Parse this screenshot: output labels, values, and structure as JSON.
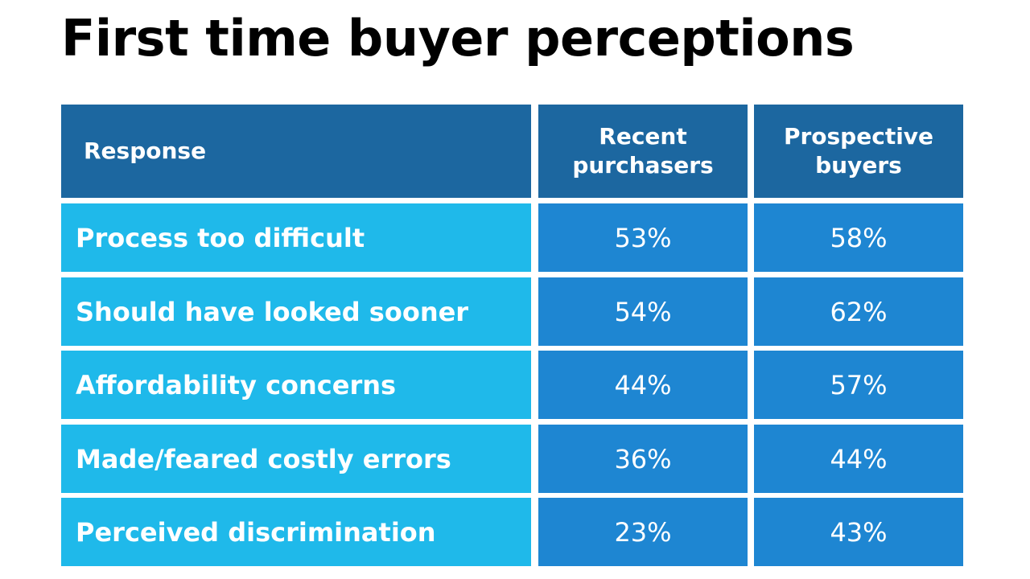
{
  "title": "First time buyer perceptions",
  "colors": {
    "header_bg": "#1c67a0",
    "label_bg": "#1fb9ea",
    "value_bg": "#1e86d2",
    "text": "#ffffff"
  },
  "chart_data": {
    "type": "table",
    "columns": [
      "Response",
      "Recent purchasers",
      "Prospective buyers"
    ],
    "column_header_lines": [
      [
        "Response"
      ],
      [
        "Recent",
        "purchasers"
      ],
      [
        "Prospective",
        "buyers"
      ]
    ],
    "rows": [
      {
        "label": "Process too difficult",
        "values": [
          "53%",
          "58%"
        ]
      },
      {
        "label": "Should have looked sooner",
        "values": [
          "54%",
          "62%"
        ]
      },
      {
        "label": "Affordability concerns",
        "values": [
          "44%",
          "57%"
        ]
      },
      {
        "label": "Made/feared costly errors",
        "values": [
          "36%",
          "44%"
        ]
      },
      {
        "label": "Perceived discrimination",
        "values": [
          "23%",
          "43%"
        ]
      }
    ]
  }
}
